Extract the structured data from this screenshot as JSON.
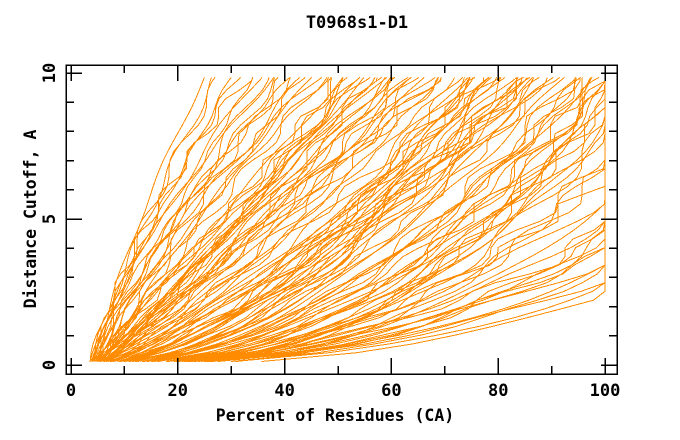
{
  "chart_data": {
    "type": "line",
    "title": "T0968s1-D1",
    "xlabel": "Percent of Residues (CA)",
    "ylabel": "Distance Cutoff, A",
    "xlim": [
      0,
      100
    ],
    "ylim": [
      0,
      10
    ],
    "x_major_ticks": [
      0,
      20,
      40,
      60,
      80,
      100
    ],
    "x_minor_ticks": [
      10,
      30,
      50,
      70,
      90
    ],
    "y_major_ticks": [
      0,
      5,
      10
    ],
    "y_minor_ticks": [
      1,
      2,
      3,
      4,
      6,
      7,
      8,
      9
    ],
    "grid": false,
    "legend": "none",
    "line_color": "#ff8c00",
    "frame_color": "#000000",
    "background": "#ffffff",
    "cutoff_start": 0.12,
    "cutoff_end": 9.85,
    "curve_model": "percent(c) = min(100, s + (e - s) * (c / 9.85)^k), one cumulative curve per model; curves with e > 100 saturate at 100% before the top cutoff",
    "curves": [
      [
        5,
        25,
        1.35
      ],
      [
        4,
        27,
        1.2
      ],
      [
        6,
        28,
        1.45
      ],
      [
        3.5,
        30,
        1.1
      ],
      [
        5,
        31,
        1.3
      ],
      [
        4.5,
        33,
        1.5
      ],
      [
        6,
        34,
        1.15
      ],
      [
        4,
        35,
        1.3
      ],
      [
        5.5,
        36,
        1.05
      ],
      [
        3.5,
        38,
        1.4
      ],
      [
        5,
        39,
        1.2
      ],
      [
        6,
        40,
        1.1
      ],
      [
        4,
        41,
        1.35
      ],
      [
        5,
        43,
        1.0
      ],
      [
        4.5,
        44,
        1.25
      ],
      [
        6,
        45,
        1.15
      ],
      [
        3.5,
        46,
        1.3
      ],
      [
        5,
        47,
        1.05
      ],
      [
        4,
        48,
        1.2
      ],
      [
        5.5,
        42,
        1.4
      ],
      [
        4,
        50,
        0.95
      ],
      [
        5,
        51,
        1.05
      ],
      [
        6,
        52,
        0.85
      ],
      [
        3.5,
        53,
        1.0
      ],
      [
        5,
        54,
        0.9
      ],
      [
        4.5,
        55,
        1.1
      ],
      [
        6,
        56,
        0.8
      ],
      [
        4,
        57,
        0.95
      ],
      [
        5.5,
        58,
        1.05
      ],
      [
        3.5,
        59,
        0.85
      ],
      [
        5,
        60,
        1.0
      ],
      [
        6,
        61,
        0.9
      ],
      [
        4,
        62,
        0.78
      ],
      [
        5,
        63,
        1.08
      ],
      [
        4.5,
        64,
        0.88
      ],
      [
        6,
        65,
        0.98
      ],
      [
        3.5,
        66,
        0.8
      ],
      [
        5,
        67,
        1.02
      ],
      [
        4,
        68,
        0.9
      ],
      [
        5.5,
        69,
        0.75
      ],
      [
        4,
        70,
        0.95
      ],
      [
        5,
        50,
        0.8
      ],
      [
        6,
        55,
        1.0
      ],
      [
        4.5,
        60,
        0.85
      ],
      [
        5,
        65,
        0.75
      ],
      [
        4,
        58,
        1.1
      ],
      [
        5.5,
        53,
        0.9
      ],
      [
        6,
        68,
        0.82
      ],
      [
        4,
        72,
        0.8
      ],
      [
        5,
        73,
        0.6
      ],
      [
        6,
        74,
        0.75
      ],
      [
        3.5,
        75,
        0.55
      ],
      [
        5,
        76,
        0.7
      ],
      [
        4.5,
        77,
        0.85
      ],
      [
        6,
        78,
        0.6
      ],
      [
        4,
        79,
        0.72
      ],
      [
        5.5,
        80,
        0.52
      ],
      [
        3.5,
        81,
        0.8
      ],
      [
        5,
        82,
        0.65
      ],
      [
        6,
        83,
        0.55
      ],
      [
        4,
        84,
        0.75
      ],
      [
        5,
        85,
        0.6
      ],
      [
        4.5,
        86,
        0.7
      ],
      [
        6,
        87,
        0.5
      ],
      [
        3.5,
        88,
        0.78
      ],
      [
        5,
        89,
        0.58
      ],
      [
        4,
        90,
        0.68
      ],
      [
        5.5,
        72,
        0.55
      ],
      [
        4,
        76,
        0.62
      ],
      [
        5,
        80,
        0.78
      ],
      [
        6,
        84,
        0.52
      ],
      [
        4.5,
        88,
        0.64
      ],
      [
        5,
        74,
        0.5
      ],
      [
        4,
        82,
        0.58
      ],
      [
        5.5,
        86,
        0.74
      ],
      [
        6,
        78,
        0.5
      ],
      [
        4,
        90,
        0.55
      ],
      [
        5,
        87,
        0.66
      ],
      [
        4,
        92,
        0.55
      ],
      [
        5,
        93,
        0.45
      ],
      [
        6,
        94,
        0.52
      ],
      [
        3.5,
        95,
        0.4
      ],
      [
        5,
        96,
        0.5
      ],
      [
        4.5,
        97,
        0.42
      ],
      [
        6,
        98,
        0.55
      ],
      [
        4,
        99,
        0.38
      ],
      [
        5.5,
        100,
        0.48
      ],
      [
        3.5,
        101,
        0.36
      ],
      [
        5,
        102,
        0.52
      ],
      [
        6,
        103,
        0.4
      ],
      [
        4,
        104,
        0.45
      ],
      [
        5,
        106,
        0.5
      ],
      [
        4.5,
        108,
        0.38
      ],
      [
        6,
        110,
        0.44
      ],
      [
        3.5,
        112,
        0.35
      ],
      [
        5,
        114,
        0.42
      ],
      [
        4,
        95,
        0.5
      ],
      [
        5.5,
        99,
        0.36
      ],
      [
        4,
        103,
        0.48
      ],
      [
        5,
        107,
        0.4
      ],
      [
        6,
        111,
        0.5
      ],
      [
        4.5,
        115,
        0.38
      ],
      [
        5,
        98,
        0.55
      ],
      [
        4,
        105,
        0.42
      ],
      [
        5,
        120,
        0.45
      ],
      [
        4,
        125,
        0.4
      ],
      [
        6,
        130,
        0.5
      ],
      [
        3.5,
        135,
        0.38
      ],
      [
        5,
        140,
        0.48
      ],
      [
        4.5,
        145,
        0.42
      ],
      [
        6,
        150,
        0.52
      ],
      [
        4,
        155,
        0.4
      ],
      [
        5.5,
        160,
        0.45
      ],
      [
        3.5,
        165,
        0.5
      ],
      [
        5,
        170,
        0.42
      ],
      [
        4,
        175,
        0.47
      ],
      [
        5,
        128,
        0.36
      ],
      [
        6,
        142,
        0.44
      ],
      [
        4.5,
        158,
        0.5
      ],
      [
        5,
        168,
        0.38
      ]
    ]
  }
}
